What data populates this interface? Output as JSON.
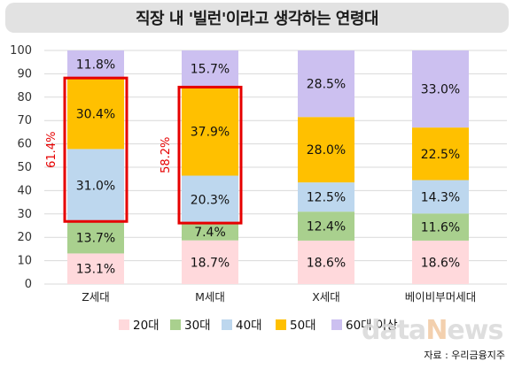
{
  "title": "직장 내 '빌런'이라고 생각하는 연령대",
  "source": "자료 : 우리금융지주",
  "watermark": {
    "prefix": "data",
    "accent": "N",
    "suffix": "ews"
  },
  "chart_data": {
    "type": "stacked-bar",
    "title": "직장 내 '빌런'이라고 생각하는 연령대",
    "xlabel": "",
    "ylabel": "",
    "ylim": [
      0,
      100
    ],
    "yticks": [
      0,
      10,
      20,
      30,
      40,
      50,
      60,
      70,
      80,
      90,
      100
    ],
    "grid": true,
    "legend_position": "bottom",
    "value_suffix": "%",
    "categories": [
      "Z세대",
      "M세대",
      "X세대",
      "베이비부머세대"
    ],
    "series": [
      {
        "name": "20대",
        "color": "#ffd9dc",
        "values": [
          13.1,
          18.7,
          18.6,
          18.6
        ]
      },
      {
        "name": "30대",
        "color": "#a9d08e",
        "values": [
          13.7,
          7.4,
          12.4,
          11.6
        ]
      },
      {
        "name": "40대",
        "color": "#bdd7ee",
        "values": [
          31.0,
          20.3,
          12.5,
          14.3
        ]
      },
      {
        "name": "50대",
        "color": "#ffc000",
        "values": [
          30.4,
          37.9,
          28.0,
          22.5
        ]
      },
      {
        "name": "60대 이상",
        "color": "#ccc0f0",
        "values": [
          11.8,
          15.7,
          28.5,
          33.0
        ]
      }
    ],
    "highlights": [
      {
        "category": "Z세대",
        "series": [
          "40대",
          "50대"
        ],
        "label": "61.4%",
        "color": "#e60000"
      },
      {
        "category": "M세대",
        "series": [
          "40대",
          "50대"
        ],
        "label": "58.2%",
        "color": "#e60000"
      }
    ]
  }
}
